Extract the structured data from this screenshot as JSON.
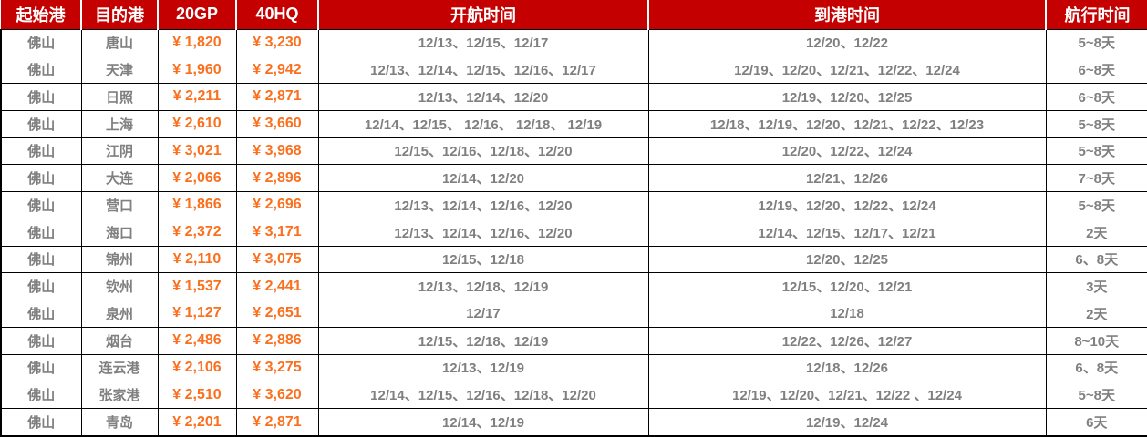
{
  "table": {
    "columns": [
      {
        "key": "origin",
        "label": "起始港"
      },
      {
        "key": "destination",
        "label": "目的港"
      },
      {
        "key": "price_20gp",
        "label": "20GP"
      },
      {
        "key": "price_40hq",
        "label": "40HQ"
      },
      {
        "key": "departure",
        "label": "开航时间"
      },
      {
        "key": "arrival",
        "label": "到港时间"
      },
      {
        "key": "duration",
        "label": "航行时间"
      }
    ],
    "rows": [
      {
        "origin": "佛山",
        "destination": "唐山",
        "price_20gp": "¥ 1,820",
        "price_40hq": "¥ 3,230",
        "departure": "12/13、12/15、12/17",
        "arrival": "12/20、12/22",
        "duration": "5~8天"
      },
      {
        "origin": "佛山",
        "destination": "天津",
        "price_20gp": "¥ 1,960",
        "price_40hq": "¥ 2,942",
        "departure": "12/13、12/14、12/15、12/16、12/17",
        "arrival": "12/19、12/20、12/21、12/22、12/24",
        "duration": "6~8天"
      },
      {
        "origin": "佛山",
        "destination": "日照",
        "price_20gp": "¥ 2,211",
        "price_40hq": "¥ 2,871",
        "departure": "12/13、12/14、12/20",
        "arrival": "12/19、12/20、12/25",
        "duration": "6~8天"
      },
      {
        "origin": "佛山",
        "destination": "上海",
        "price_20gp": "¥ 2,610",
        "price_40hq": "¥ 3,660",
        "departure": "12/14、12/15、 12/16、 12/18、 12/19",
        "arrival": "12/18、12/19、12/20、12/21、12/22、12/23",
        "duration": "5~8天"
      },
      {
        "origin": "佛山",
        "destination": "江阴",
        "price_20gp": "¥ 3,021",
        "price_40hq": "¥ 3,968",
        "departure": "12/15、12/16、12/18、12/20",
        "arrival": "12/20、12/22、12/24",
        "duration": "5~8天"
      },
      {
        "origin": "佛山",
        "destination": "大连",
        "price_20gp": "¥ 2,066",
        "price_40hq": "¥ 2,896",
        "departure": "12/14、12/20",
        "arrival": "12/21、12/26",
        "duration": "7~8天"
      },
      {
        "origin": "佛山",
        "destination": "营口",
        "price_20gp": "¥ 1,866",
        "price_40hq": "¥ 2,696",
        "departure": "12/13、12/14、12/16、12/20",
        "arrival": "12/19、12/20、12/22、12/24",
        "duration": "5~8天"
      },
      {
        "origin": "佛山",
        "destination": "海口",
        "price_20gp": "¥ 2,372",
        "price_40hq": "¥ 3,171",
        "departure": "12/13、12/14、12/16、12/20",
        "arrival": "12/14、12/15、12/17、12/21",
        "duration": "2天"
      },
      {
        "origin": "佛山",
        "destination": "锦州",
        "price_20gp": "¥ 2,110",
        "price_40hq": "¥ 3,075",
        "departure": "12/15、12/18",
        "arrival": "12/20、12/25",
        "duration": "6、8天"
      },
      {
        "origin": "佛山",
        "destination": "钦州",
        "price_20gp": "¥ 1,537",
        "price_40hq": "¥ 2,441",
        "departure": "12/13、12/18、12/19",
        "arrival": "12/15、12/20、12/21",
        "duration": "3天"
      },
      {
        "origin": "佛山",
        "destination": "泉州",
        "price_20gp": "¥ 1,127",
        "price_40hq": "¥ 2,651",
        "departure": "12/17",
        "arrival": "12/18",
        "duration": "2天"
      },
      {
        "origin": "佛山",
        "destination": "烟台",
        "price_20gp": "¥ 2,486",
        "price_40hq": "¥ 2,886",
        "departure": "12/15、12/18、12/19",
        "arrival": "12/22、12/26、12/27",
        "duration": "8~10天"
      },
      {
        "origin": "佛山",
        "destination": "连云港",
        "price_20gp": "¥ 2,106",
        "price_40hq": "¥ 3,275",
        "departure": "12/13、12/19",
        "arrival": "12/18、12/26",
        "duration": "6、8天"
      },
      {
        "origin": "佛山",
        "destination": "张家港",
        "price_20gp": "¥ 2,510",
        "price_40hq": "¥ 3,620",
        "departure": "12/14、12/15、12/16、12/18、12/20",
        "arrival": "12/19、12/20、12/21、12/22 、12/24",
        "duration": "5~8天"
      },
      {
        "origin": "佛山",
        "destination": "青岛",
        "price_20gp": "¥ 2,201",
        "price_40hq": "¥ 2,871",
        "departure": "12/14、12/19",
        "arrival": "12/19、12/24",
        "duration": "6天"
      }
    ]
  },
  "colors": {
    "header_bg": "#C40000",
    "header_text": "#FFFFFF",
    "price_text": "#FA701E",
    "body_text": "#808080",
    "grid": "#000000"
  }
}
